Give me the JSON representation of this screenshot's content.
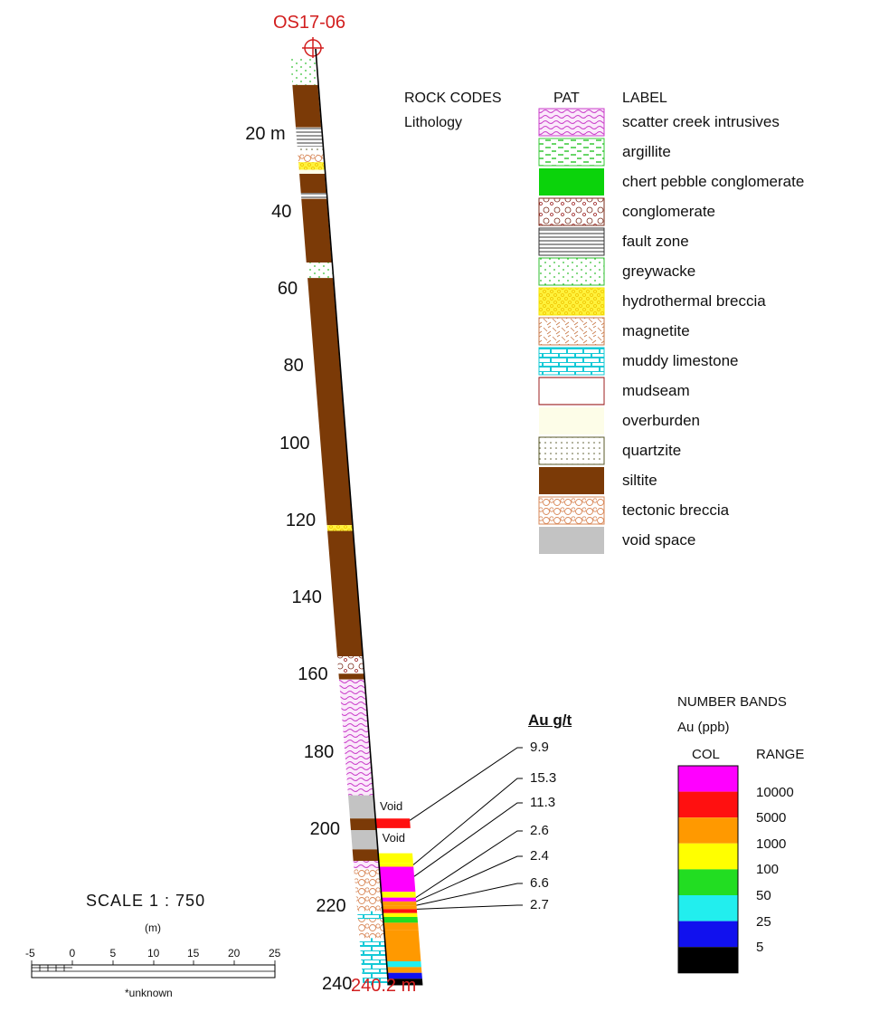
{
  "hole": {
    "name": "OS17-06",
    "end_depth_label": "240.2 m"
  },
  "depth_labels": [
    {
      "text": "20 m",
      "depth": 20
    },
    {
      "text": "40",
      "depth": 40
    },
    {
      "text": "60",
      "depth": 60
    },
    {
      "text": "80",
      "depth": 80
    },
    {
      "text": "100",
      "depth": 100
    },
    {
      "text": "120",
      "depth": 120
    },
    {
      "text": "140",
      "depth": 140
    },
    {
      "text": "160",
      "depth": 160
    },
    {
      "text": "180",
      "depth": 180
    },
    {
      "text": "200",
      "depth": 200
    },
    {
      "text": "220",
      "depth": 220
    },
    {
      "text": "240",
      "depth": 240
    }
  ],
  "legend": {
    "col_rock_codes": "ROCK CODES",
    "col_lithology": "Lithology",
    "col_pat": "PAT",
    "col_label": "LABEL",
    "items": [
      {
        "label": "scatter creek intrusives",
        "pattern": "wavy",
        "color": "#c93cc9"
      },
      {
        "label": "argillite",
        "pattern": "dashes",
        "color": "#37c937"
      },
      {
        "label": "chert pebble conglomerate",
        "pattern": "solid",
        "color": "#0bd30b"
      },
      {
        "label": "conglomerate",
        "pattern": "circles",
        "color": "#7a2b1a"
      },
      {
        "label": "fault zone",
        "pattern": "lines",
        "color": "#333333"
      },
      {
        "label": "greywacke",
        "pattern": "dots",
        "color": "#2fbf2f"
      },
      {
        "label": "hydrothermal breccia",
        "pattern": "breccia",
        "color": "#f5e600"
      },
      {
        "label": "magnetite",
        "pattern": "hatch",
        "color": "#c87a4a"
      },
      {
        "label": "muddy limestone",
        "pattern": "bricks",
        "color": "#13c9d6"
      },
      {
        "label": "mudseam",
        "pattern": "mud",
        "color": "#9c1f1f"
      },
      {
        "label": "overburden",
        "pattern": "plain",
        "color": "#fdfde8"
      },
      {
        "label": "quartzite",
        "pattern": "qdots",
        "color": "#5a5a2a"
      },
      {
        "label": "siltite",
        "pattern": "solid",
        "color": "#7b3a07"
      },
      {
        "label": "tectonic breccia",
        "pattern": "cells",
        "color": "#d9895a"
      },
      {
        "label": "void space",
        "pattern": "solid",
        "color": "#c3c3c3"
      }
    ]
  },
  "lithology_column": [
    {
      "from": 0,
      "to": 7,
      "code": "greywacke"
    },
    {
      "from": 7,
      "to": 18,
      "code": "siltite"
    },
    {
      "from": 18,
      "to": 23,
      "code": "fault zone"
    },
    {
      "from": 23,
      "to": 25,
      "code": "quartzite"
    },
    {
      "from": 25,
      "to": 27,
      "code": "tectonic breccia"
    },
    {
      "from": 27,
      "to": 29,
      "code": "hydrothermal breccia"
    },
    {
      "from": 29,
      "to": 30,
      "code": "overburden"
    },
    {
      "from": 30,
      "to": 35,
      "code": "siltite"
    },
    {
      "from": 35,
      "to": 36.5,
      "code": "fault zone"
    },
    {
      "from": 36.5,
      "to": 53,
      "code": "siltite"
    },
    {
      "from": 53,
      "to": 57,
      "code": "greywacke"
    },
    {
      "from": 57,
      "to": 121,
      "code": "siltite"
    },
    {
      "from": 121,
      "to": 122.5,
      "code": "hydrothermal breccia"
    },
    {
      "from": 122.5,
      "to": 155,
      "code": "siltite"
    },
    {
      "from": 155,
      "to": 159.5,
      "code": "conglomerate"
    },
    {
      "from": 159.5,
      "to": 161,
      "code": "siltite"
    },
    {
      "from": 161,
      "to": 191,
      "code": "scatter creek intrusives"
    },
    {
      "from": 191,
      "to": 197,
      "code": "void space"
    },
    {
      "from": 197,
      "to": 200,
      "code": "siltite"
    },
    {
      "from": 200,
      "to": 205,
      "code": "void space"
    },
    {
      "from": 205,
      "to": 208,
      "code": "siltite"
    },
    {
      "from": 208,
      "to": 210,
      "code": "scatter creek intrusives"
    },
    {
      "from": 210,
      "to": 221,
      "code": "tectonic breccia"
    },
    {
      "from": 221,
      "to": 223,
      "code": "muddy limestone"
    },
    {
      "from": 223,
      "to": 228,
      "code": "tectonic breccia"
    },
    {
      "from": 228,
      "to": 237,
      "code": "muddy limestone"
    },
    {
      "from": 237,
      "to": 240.2,
      "code": "muddy limestone"
    }
  ],
  "void_labels": [
    {
      "text": "Void",
      "depth": 194
    },
    {
      "text": "Void",
      "depth": 202
    }
  ],
  "assay_column": {
    "title": "Au g/t",
    "intervals": [
      {
        "from": 197,
        "to": 199.5,
        "ppb": 9900
      },
      {
        "from": 206,
        "to": 208.5,
        "ppb": 600
      },
      {
        "from": 208.5,
        "to": 209.5,
        "ppb": 150
      },
      {
        "from": 209.5,
        "to": 216,
        "ppb": 15300
      },
      {
        "from": 216,
        "to": 217.5,
        "ppb": 700
      },
      {
        "from": 217.5,
        "to": 218.5,
        "ppb": 11300
      },
      {
        "from": 218.5,
        "to": 219.5,
        "ppb": 2600
      },
      {
        "from": 219.5,
        "to": 220.5,
        "ppb": 2400
      },
      {
        "from": 220.5,
        "to": 221.5,
        "ppb": 6600
      },
      {
        "from": 221.5,
        "to": 222.5,
        "ppb": 700
      },
      {
        "from": 222.5,
        "to": 224,
        "ppb": 70
      },
      {
        "from": 224,
        "to": 226,
        "ppb": 2700
      },
      {
        "from": 226,
        "to": 234,
        "ppb": 3000
      },
      {
        "from": 234,
        "to": 235.5,
        "ppb": 30
      },
      {
        "from": 235.5,
        "to": 237,
        "ppb": 1200
      },
      {
        "from": 237,
        "to": 238.5,
        "ppb": 10
      },
      {
        "from": 238.5,
        "to": 240.2,
        "ppb": 3
      }
    ],
    "callouts": [
      {
        "value": "9.9",
        "depth": 197.5
      },
      {
        "value": "15.3",
        "depth": 209
      },
      {
        "value": "11.3",
        "depth": 212
      },
      {
        "value": "2.6",
        "depth": 217.5
      },
      {
        "value": "2.4",
        "depth": 218.5
      },
      {
        "value": "6.6",
        "depth": 219.5
      },
      {
        "value": "2.7",
        "depth": 220.5
      }
    ]
  },
  "number_bands": {
    "title": "NUMBER BANDS",
    "subtitle": "Au (ppb)",
    "col_header": "COL",
    "range_header": "RANGE",
    "bands": [
      {
        "min": 10000,
        "color": "#ff00ff",
        "range_label": ""
      },
      {
        "min": 5000,
        "color": "#ff1010",
        "range_label": "10000"
      },
      {
        "min": 1000,
        "color": "#ff9900",
        "range_label": "5000"
      },
      {
        "min": 100,
        "color": "#ffff00",
        "range_label": "1000"
      },
      {
        "min": 50,
        "color": "#22dd22",
        "range_label": "100"
      },
      {
        "min": 25,
        "color": "#22eeee",
        "range_label": "50"
      },
      {
        "min": 5,
        "color": "#1111ee",
        "range_label": "25"
      },
      {
        "min": 0,
        "color": "#000000",
        "range_label": "5"
      }
    ]
  },
  "scale": {
    "title": "SCALE  1 : 750",
    "unit": "(m)",
    "ticks": [
      "-5",
      "0",
      "5",
      "10",
      "15",
      "20",
      "25"
    ],
    "note": "*unknown"
  }
}
